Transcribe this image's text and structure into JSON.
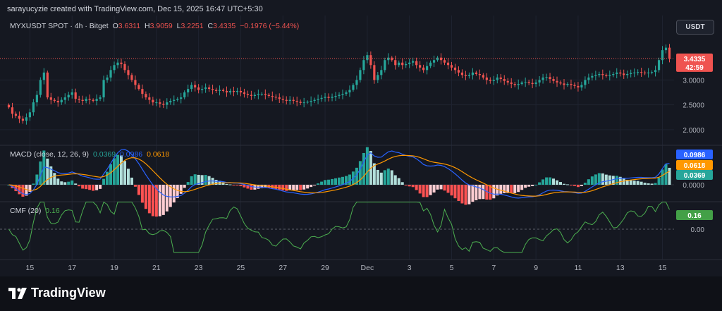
{
  "header": {
    "attribution": "sarayucyzie created with TradingView.com, Dec 15, 2025 16:47 UTC+5:30"
  },
  "symbol": {
    "name": "MYXUSDT SPOT · 4h · Bitget",
    "o_label": "O",
    "o": "3.6311",
    "h_label": "H",
    "h": "3.9059",
    "l_label": "L",
    "l": "3.2251",
    "c_label": "C",
    "c": "3.4335",
    "change": "−0.1976 (−5.44%)"
  },
  "currency_button": "USDT",
  "price_badge": {
    "value": "3.4335",
    "countdown": "42:59"
  },
  "macd_legend": {
    "name": "MACD (close, 12, 26, 9)",
    "hist": "0.0369",
    "macd": "0.0986",
    "signal": "0.0618"
  },
  "cmf_legend": {
    "name": "CMF (20)",
    "value": "0.16"
  },
  "colors": {
    "bg": "#151821",
    "up": "#26a69a",
    "down": "#ef5350",
    "macd": "#2962ff",
    "signal": "#ff9800",
    "cmf": "#4caf50",
    "text": "#b2b5be"
  },
  "footer": {
    "logo_text": "TradingView",
    "logo_icon": "tradingview-logo-icon"
  },
  "chart_data": [
    {
      "type": "candlestick",
      "title": "MYXUSDT SPOT · 4h · Bitget",
      "y_ticks": [
        "3.0000",
        "2.5000",
        "2.0000"
      ],
      "ylim": [
        1.8,
        3.9
      ],
      "x_ticks": [
        "15",
        "17",
        "19",
        "21",
        "23",
        "25",
        "27",
        "29",
        "Dec",
        "3",
        "5",
        "7",
        "9",
        "11",
        "13",
        "15"
      ],
      "x_tick_index": [
        6,
        18,
        30,
        42,
        54,
        66,
        78,
        90,
        102,
        114,
        126,
        138,
        150,
        162,
        174,
        186
      ],
      "close": [
        2.45,
        2.32,
        2.28,
        2.22,
        2.18,
        2.25,
        2.35,
        2.55,
        2.7,
        3.0,
        3.15,
        2.65,
        2.6,
        2.58,
        2.55,
        2.6,
        2.65,
        2.7,
        2.75,
        2.62,
        2.6,
        2.58,
        2.62,
        2.6,
        2.58,
        2.62,
        2.65,
        3.0,
        3.05,
        3.2,
        3.3,
        3.35,
        3.32,
        3.2,
        3.1,
        3.0,
        2.9,
        2.82,
        2.72,
        2.65,
        2.6,
        2.55,
        2.55,
        2.52,
        2.5,
        2.55,
        2.58,
        2.6,
        2.62,
        2.65,
        2.75,
        2.82,
        2.9,
        2.85,
        2.8,
        2.82,
        2.85,
        2.82,
        2.8,
        2.78,
        2.8,
        2.78,
        2.75,
        2.78,
        2.76,
        2.78,
        2.75,
        2.72,
        2.7,
        2.68,
        2.7,
        2.72,
        2.72,
        2.7,
        2.68,
        2.66,
        2.65,
        2.62,
        2.6,
        2.58,
        2.6,
        2.58,
        2.56,
        2.54,
        2.55,
        2.56,
        2.58,
        2.6,
        2.62,
        2.64,
        2.66,
        2.64,
        2.66,
        2.68,
        2.7,
        2.72,
        2.75,
        2.8,
        2.9,
        3.0,
        3.2,
        3.4,
        3.5,
        3.3,
        3.0,
        3.1,
        3.2,
        3.4,
        3.45,
        3.4,
        3.3,
        3.35,
        3.3,
        3.32,
        3.35,
        3.38,
        3.3,
        3.25,
        3.2,
        3.28,
        3.35,
        3.4,
        3.45,
        3.4,
        3.35,
        3.3,
        3.25,
        3.2,
        3.15,
        3.1,
        3.08,
        3.1,
        3.15,
        3.12,
        3.1,
        3.05,
        3.0,
        2.98,
        3.0,
        3.05,
        3.02,
        2.98,
        2.95,
        2.92,
        2.9,
        2.92,
        2.95,
        2.96,
        2.94,
        2.92,
        2.95,
        3.0,
        3.05,
        3.06,
        3.02,
        2.98,
        2.95,
        2.93,
        2.9,
        2.92,
        2.9,
        2.88,
        2.85,
        2.9,
        3.0,
        3.05,
        3.08,
        3.1,
        3.12,
        3.1,
        3.08,
        3.1,
        3.12,
        3.15,
        3.13,
        3.1,
        3.12,
        3.14,
        3.15,
        3.16,
        3.15,
        3.14,
        3.15,
        3.16,
        3.2,
        3.4,
        3.6,
        3.65,
        3.43
      ],
      "last_price": 3.4335
    },
    {
      "type": "bar+line",
      "title": "MACD (close, 12, 26, 9)",
      "y_ticks": [
        "0.0000"
      ],
      "series": [
        {
          "name": "Histogram",
          "value": 0.0369
        },
        {
          "name": "MACD",
          "value": 0.0986
        },
        {
          "name": "Signal",
          "value": 0.0618
        }
      ]
    },
    {
      "type": "line",
      "title": "CMF (20)",
      "y_ticks": [
        "0.00"
      ],
      "series": [
        {
          "name": "CMF",
          "value": 0.16
        }
      ]
    }
  ]
}
